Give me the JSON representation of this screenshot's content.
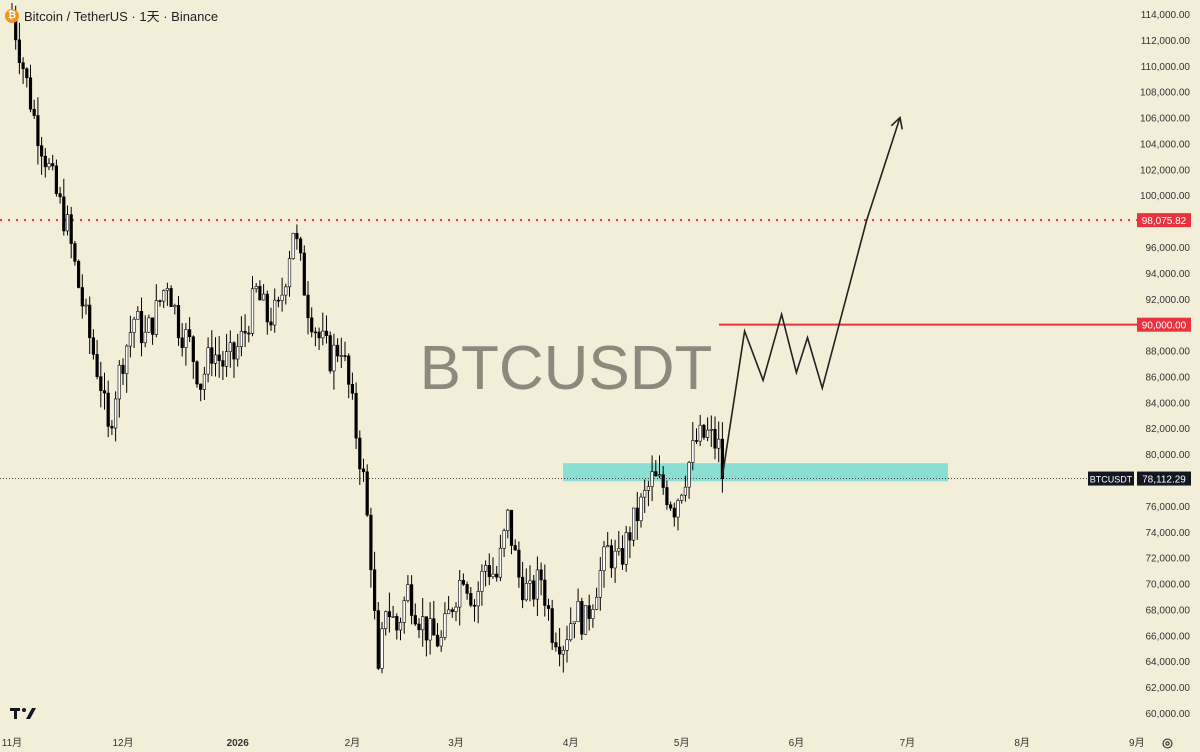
{
  "header": {
    "symbol_icon": "bitcoin-icon",
    "symbol_title": "Bitcoin / TetherUS · 1天 · Binance"
  },
  "watermark": "BTCUSDT",
  "colors": {
    "background": "#f3eed7",
    "up_candle": "#ffffff",
    "down_candle": "#000000",
    "resistance": "#e8323c",
    "support_zone": "#7fdcd4",
    "projection": "#222222"
  },
  "chart_data": {
    "type": "candlestick",
    "title": "Bitcoin / TetherUS · 1天 · Binance",
    "ylim": [
      59500,
      114800
    ],
    "y_ticks": [
      "114,000.00",
      "112,000.00",
      "110,000.00",
      "108,000.00",
      "106,000.00",
      "104,000.00",
      "102,000.00",
      "100,000.00",
      "96,000.00",
      "94,000.00",
      "92,000.00",
      "88,000.00",
      "86,000.00",
      "84,000.00",
      "82,000.00",
      "80,000.00",
      "76,000.00",
      "74,000.00",
      "72,000.00",
      "70,000.00",
      "68,000.00",
      "66,000.00",
      "64,000.00",
      "62,000.00",
      "60,000.00"
    ],
    "x_ticks": [
      "11月",
      "12月",
      "2026",
      "2月",
      "3月",
      "4月",
      "5月",
      "6月",
      "7月",
      "8月",
      "9月"
    ],
    "x_tick_days": [
      0,
      30,
      61,
      92,
      120,
      151,
      181,
      212,
      242,
      273,
      304
    ],
    "price_anchors": [
      [
        0,
        114000
      ],
      [
        3,
        110000
      ],
      [
        6,
        106000
      ],
      [
        9,
        103000
      ],
      [
        12,
        100000
      ],
      [
        15,
        97500
      ],
      [
        18,
        93000
      ],
      [
        21,
        89000
      ],
      [
        24,
        85500
      ],
      [
        26,
        81500
      ],
      [
        28,
        85000
      ],
      [
        30,
        87500
      ],
      [
        33,
        90500
      ],
      [
        36,
        89000
      ],
      [
        39,
        91000
      ],
      [
        42,
        93500
      ],
      [
        45,
        90000
      ],
      [
        48,
        88500
      ],
      [
        51,
        85500
      ],
      [
        54,
        88000
      ],
      [
        57,
        87000
      ],
      [
        60,
        87500
      ],
      [
        63,
        89500
      ],
      [
        66,
        92500
      ],
      [
        69,
        90500
      ],
      [
        72,
        91000
      ],
      [
        74,
        94000
      ],
      [
        76,
        97500
      ],
      [
        78,
        94500
      ],
      [
        80,
        91500
      ],
      [
        83,
        89000
      ],
      [
        86,
        87500
      ],
      [
        89,
        88500
      ],
      [
        92,
        83500
      ],
      [
        95,
        78000
      ],
      [
        97,
        72000
      ],
      [
        99,
        62500
      ],
      [
        101,
        68500
      ],
      [
        104,
        66500
      ],
      [
        107,
        69500
      ],
      [
        110,
        67500
      ],
      [
        113,
        66000
      ],
      [
        116,
        65500
      ],
      [
        119,
        68500
      ],
      [
        122,
        71000
      ],
      [
        125,
        68500
      ],
      [
        128,
        71500
      ],
      [
        131,
        70500
      ],
      [
        134,
        75000
      ],
      [
        137,
        70500
      ],
      [
        140,
        69000
      ],
      [
        143,
        70500
      ],
      [
        146,
        66500
      ],
      [
        149,
        65500
      ],
      [
        152,
        68000
      ],
      [
        155,
        67000
      ],
      [
        158,
        70000
      ],
      [
        161,
        72500
      ],
      [
        164,
        71500
      ],
      [
        167,
        74000
      ],
      [
        170,
        76000
      ],
      [
        173,
        78000
      ],
      [
        176,
        77500
      ],
      [
        179,
        76000
      ],
      [
        182,
        78500
      ],
      [
        185,
        81000
      ],
      [
        188,
        81500
      ],
      [
        191,
        80500
      ],
      [
        192,
        78500
      ]
    ],
    "horizontal_levels": [
      {
        "price": 98075.82,
        "label": "98,075.82",
        "style": "dotted",
        "color": "#e8323c"
      },
      {
        "price": 90000,
        "label": "90,000.00",
        "style": "solid",
        "color": "#e8323c"
      }
    ],
    "current_price": {
      "symbol": "BTCUSDT",
      "price": 78112.29,
      "label": "78,112.29"
    },
    "support_zone": {
      "from": 77900,
      "to": 79300
    },
    "projection_path": [
      [
        192,
        78300
      ],
      [
        198,
        89500
      ],
      [
        203,
        85700
      ],
      [
        208,
        90800
      ],
      [
        212,
        86300
      ],
      [
        215,
        89000
      ],
      [
        219,
        85100
      ],
      [
        231,
        98075.82
      ],
      [
        240,
        106000
      ]
    ]
  }
}
